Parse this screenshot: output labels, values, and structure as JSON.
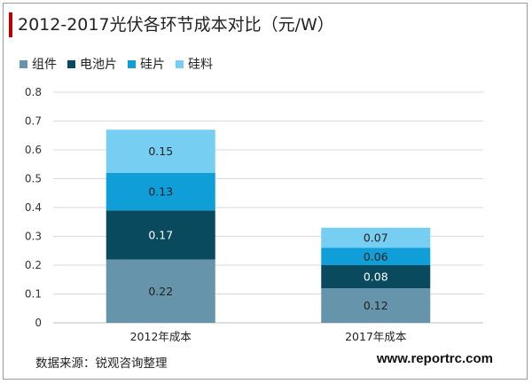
{
  "chart_data": {
    "type": "bar",
    "stacked": true,
    "title": "2012-2017光伏各环节成本对比（元/W）",
    "categories": [
      "2012年成本",
      "2017年成本"
    ],
    "series": [
      {
        "name": "组件",
        "color": "#6694aa",
        "values": [
          0.22,
          0.12
        ]
      },
      {
        "name": "电池片",
        "color": "#0a4a5e",
        "values": [
          0.17,
          0.08
        ]
      },
      {
        "name": "硅片",
        "color": "#0f9ed8",
        "values": [
          0.13,
          0.06
        ]
      },
      {
        "name": "硅料",
        "color": "#76cef2",
        "values": [
          0.15,
          0.07
        ]
      }
    ],
    "ylim": [
      0,
      0.8
    ],
    "yticks": [
      "0",
      "0.1",
      "0.2",
      "0.3",
      "0.4",
      "0.5",
      "0.6",
      "0.7",
      "0.8"
    ],
    "legend_position": "top-left",
    "grid": true
  },
  "source": "数据来源：锐观咨询整理",
  "website": "www.reportrc.com"
}
